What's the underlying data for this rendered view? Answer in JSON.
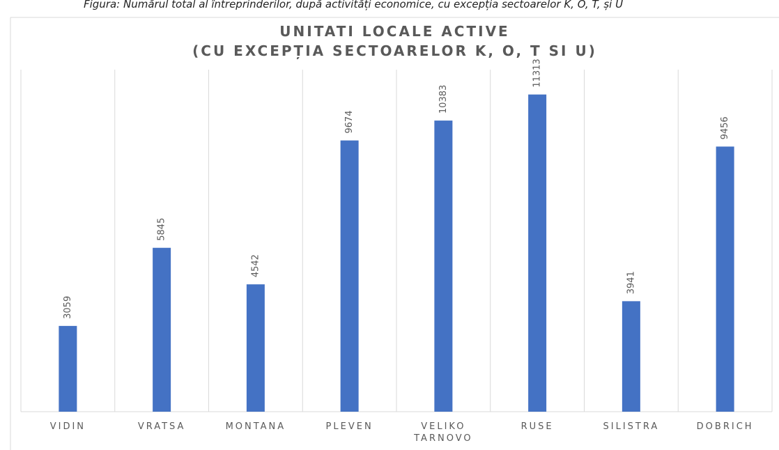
{
  "caption": "Figura: Numărul total al întreprinderilor, după activități economice, cu excepția sectoarelor K, O, T, și U",
  "chart_data": {
    "type": "bar",
    "title": [
      "UNITATI LOCALE ACTIVE",
      "(CU EXCEPȚIA SECTOARELOR K, O, T SI U)"
    ],
    "categories": [
      "VIDIN",
      "VRATSA",
      "MONTANA",
      "PLEVEN",
      "VELIKO TARNOVO",
      "RUSE",
      "SILISTRA",
      "DOBRICH"
    ],
    "values": [
      3059,
      5845,
      4542,
      9674,
      10383,
      11313,
      3941,
      9456
    ],
    "color": "#4472c4",
    "ylim": [
      0,
      12000
    ],
    "data_labels": true
  }
}
